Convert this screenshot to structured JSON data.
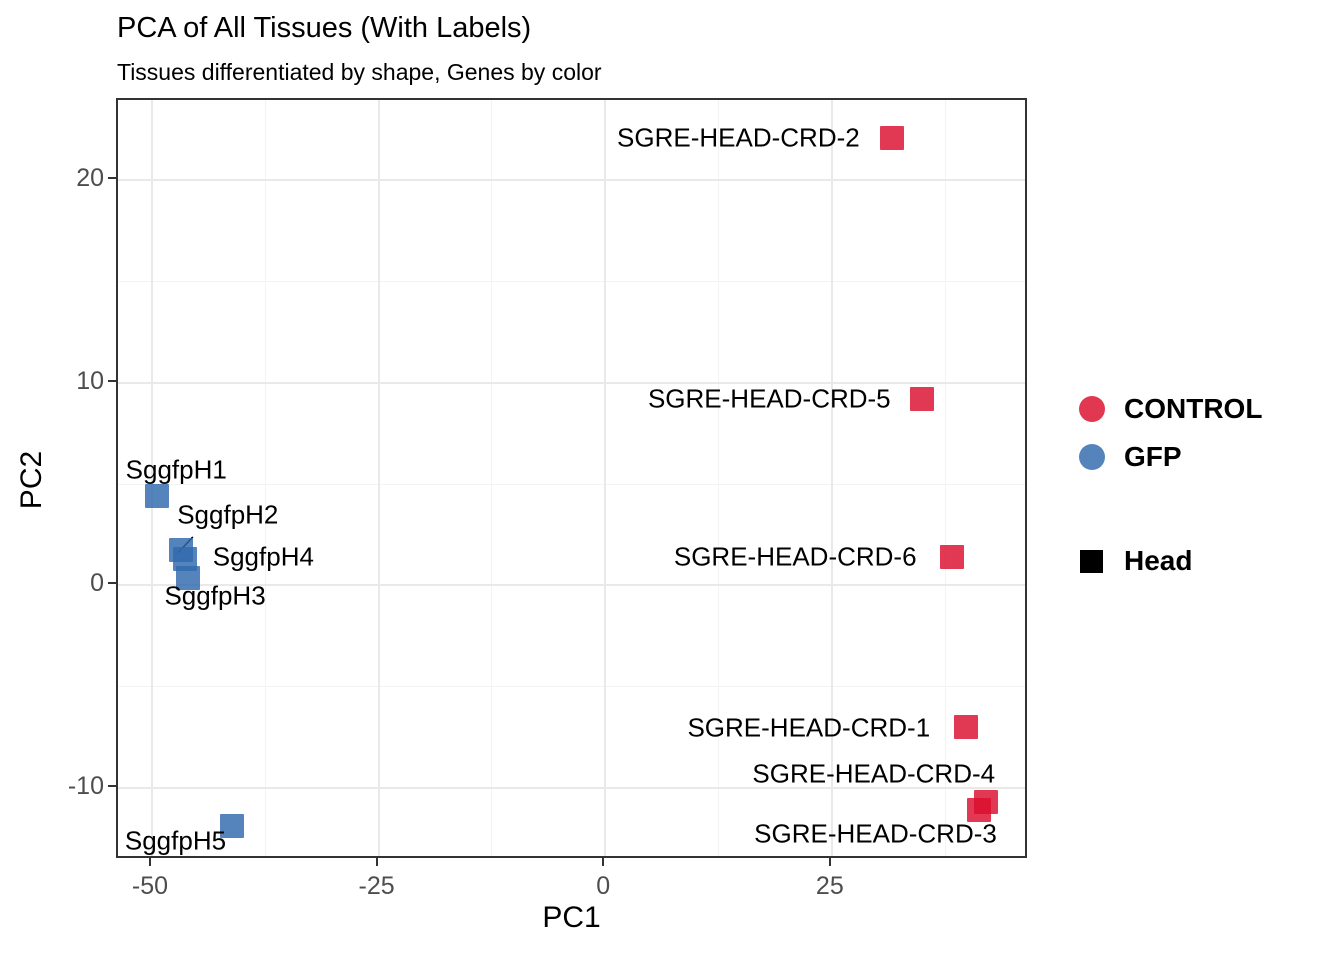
{
  "chart_data": {
    "type": "scatter",
    "title": "PCA of All Tissues (With Labels)",
    "subtitle": "Tissues differentiated by shape, Genes by color",
    "xlabel": "PC1",
    "ylabel": "PC2",
    "xlim": [
      -53.75,
      46.75
    ],
    "ylim": [
      -13.55,
      23.95
    ],
    "x_ticks": [
      -50,
      -25,
      0,
      25
    ],
    "y_ticks": [
      -10,
      0,
      10,
      20
    ],
    "x_minor_ticks": [
      -37.5,
      -12.5,
      12.5,
      37.5
    ],
    "y_minor_ticks": [
      -5,
      5,
      15
    ],
    "grid": "major-and-minor",
    "legend_position": "right",
    "point_shape": "square",
    "colors": {
      "control_fill": "rgba(219,13,45,0.82)",
      "control_solid": "#e23750",
      "gfp_fill": "rgba(47,105,173,0.82)",
      "gfp_solid": "#5584bc",
      "shape_legend_fill": "#000000",
      "panel_border": "#333333",
      "grid_major": "#e9e9e9",
      "grid_minor": "#f3f3f3",
      "tick_text": "#4d4d4d"
    },
    "series": [
      {
        "name": "CONTROL",
        "shape": "square",
        "points": [
          {
            "label": "SGRE-HEAD-CRD-2",
            "x": 31.9,
            "y": 22.0,
            "label_dx": -154,
            "label_dy": 0
          },
          {
            "label": "SGRE-HEAD-CRD-5",
            "x": 35.2,
            "y": 9.1,
            "label_dx": -153,
            "label_dy": 0
          },
          {
            "label": "SGRE-HEAD-CRD-6",
            "x": 38.5,
            "y": 1.3,
            "label_dx": -157,
            "label_dy": 0
          },
          {
            "label": "SGRE-HEAD-CRD-1",
            "x": 40.0,
            "y": -7.1,
            "label_dx": -157,
            "label_dy": 1
          },
          {
            "label": "SGRE-HEAD-CRD-4",
            "x": 42.2,
            "y": -10.8,
            "label_dx": -112,
            "label_dy": -28
          },
          {
            "label": "SGRE-HEAD-CRD-3",
            "x": 41.4,
            "y": -11.2,
            "label_dx": -103,
            "label_dy": 24
          }
        ]
      },
      {
        "name": "GFP",
        "shape": "square",
        "points": [
          {
            "label": "SggfpH1",
            "x": -49.2,
            "y": 4.3,
            "label_dx": 19,
            "label_dy": -26
          },
          {
            "label": "SggfpH2",
            "x": -46.6,
            "y": 1.65,
            "label_dx": 47,
            "label_dy": -35,
            "leader": {
              "x1": 12,
              "y1": -13,
              "x2": -3,
              "y2": 3
            }
          },
          {
            "label": "SggfpH4",
            "x": -46.1,
            "y": 1.2,
            "label_dx": 78,
            "label_dy": -2
          },
          {
            "label": "SggfpH3",
            "x": -45.8,
            "y": 0.25,
            "label_dx": 27,
            "label_dy": 18
          },
          {
            "label": "SggfpH5",
            "x": -40.9,
            "y": -11.95,
            "label_dx": -57,
            "label_dy": 15
          }
        ]
      }
    ],
    "color_legend": [
      {
        "label": "CONTROL",
        "color_key": "control_solid"
      },
      {
        "label": "GFP",
        "color_key": "gfp_solid"
      }
    ],
    "shape_legend": [
      {
        "label": "Head",
        "shape": "square",
        "color_key": "shape_legend_fill"
      }
    ]
  }
}
